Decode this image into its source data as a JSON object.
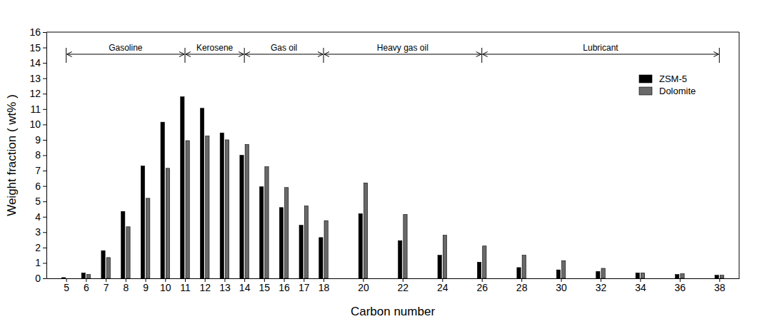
{
  "chart_data": {
    "type": "bar",
    "x_label": "Carbon number",
    "y_label": "Weight fraction ( wt% )",
    "x": [
      5,
      6,
      7,
      8,
      9,
      10,
      11,
      12,
      13,
      14,
      15,
      16,
      17,
      18,
      20,
      22,
      24,
      26,
      28,
      30,
      32,
      34,
      36,
      38
    ],
    "series": [
      {
        "name": "ZSM-5",
        "color": "#000000",
        "values": [
          0.05,
          0.35,
          1.8,
          4.35,
          7.3,
          10.15,
          11.8,
          11.05,
          9.45,
          8.0,
          5.95,
          4.6,
          3.45,
          2.65,
          4.2,
          2.45,
          1.5,
          1.05,
          0.7,
          0.55,
          0.45,
          0.35,
          0.25,
          0.2
        ]
      },
      {
        "name": "Dolomite",
        "color": "#696969",
        "values": [
          0,
          0.25,
          1.35,
          3.35,
          5.2,
          7.15,
          8.95,
          9.25,
          9.0,
          8.7,
          7.25,
          5.9,
          4.7,
          3.75,
          6.2,
          4.15,
          2.8,
          2.1,
          1.5,
          1.15,
          0.65,
          0.35,
          0.3,
          0.2
        ]
      }
    ],
    "xlim": [
      4,
      39
    ],
    "xticks": [
      5,
      6,
      7,
      8,
      9,
      10,
      11,
      12,
      13,
      14,
      15,
      16,
      17,
      18,
      20,
      22,
      24,
      26,
      28,
      30,
      32,
      34,
      36,
      38
    ],
    "ylim": [
      0,
      16
    ],
    "yticks": [
      0,
      1,
      2,
      3,
      4,
      5,
      6,
      7,
      8,
      9,
      10,
      11,
      12,
      13,
      14,
      15,
      16
    ],
    "annotations": [
      {
        "label": "Gasoline",
        "from": 5,
        "to": 11
      },
      {
        "label": "Kerosene",
        "from": 11,
        "to": 14
      },
      {
        "label": "Gas oil",
        "from": 14,
        "to": 18
      },
      {
        "label": "Heavy gas oil",
        "from": 18,
        "to": 26
      },
      {
        "label": "Lubricant",
        "from": 26,
        "to": 38
      }
    ],
    "legend": "upper right",
    "grid": false
  }
}
